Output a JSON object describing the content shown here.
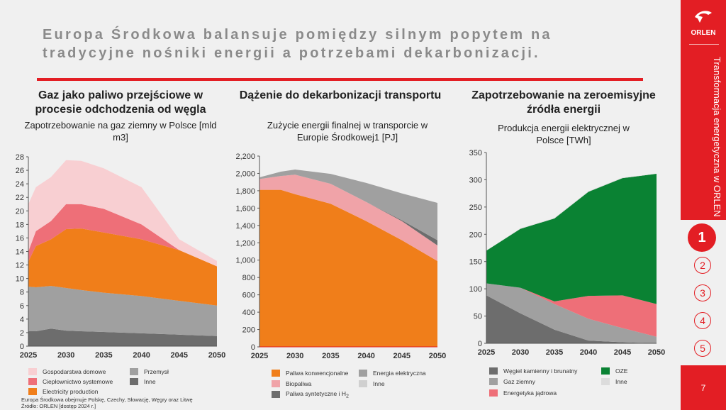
{
  "title": {
    "line1": "Europa Środkowa balansuje pomiędzy silnym popytem na",
    "line2": "tradycyjne nośniki energii a potrzebami dekarbonizacji."
  },
  "sidebar": {
    "logo": "ORLEN",
    "section": "Transformacja energetyczna w ORLEN",
    "steps": [
      "1",
      "2",
      "3",
      "4",
      "5"
    ],
    "active_step": "1",
    "page": "7"
  },
  "panels": [
    {
      "heading": "Gaz jako paliwo przejściowe w procesie odchodzenia od węgla",
      "subtitle": "Zapotrzebowanie na gaz ziemny w Polsce [mld m3]"
    },
    {
      "heading": "Dążenie do dekarbonizacji transportu",
      "subtitle": "Zużycie energii finalnej w transporcie w Europie Środkowej1 [PJ]"
    },
    {
      "heading": "Zapotrzebowanie na zeroemisyjne źródła energii",
      "subtitle": "Produkcja energii elektrycznej w Polsce [TWh]"
    }
  ],
  "footnote": {
    "line1": "Europa Środkowa obejmuje Polskę, Czechy, Słowację, Węgry oraz Litwę",
    "line2": "Źródło: ORLEN [dostęp 2024 r.]"
  },
  "chart_data": [
    {
      "type": "area",
      "stacked": true,
      "title": "Zapotrzebowanie na gaz ziemny w Polsce [mld m3]",
      "ylim": [
        0,
        28
      ],
      "yticks": [
        0,
        2,
        4,
        6,
        8,
        10,
        12,
        14,
        16,
        18,
        20,
        22,
        24,
        26,
        28
      ],
      "xticks": [
        2025,
        2030,
        2035,
        2040,
        2045,
        2050
      ],
      "x": [
        2025,
        2026,
        2028,
        2030,
        2032,
        2035,
        2040,
        2045,
        2050
      ],
      "series": [
        {
          "name": "Inne",
          "color": "#6d6d6d",
          "values": [
            2.2,
            2.2,
            2.6,
            2.3,
            2.2,
            2.1,
            1.9,
            1.7,
            1.5
          ]
        },
        {
          "name": "Przemysł",
          "color": "#a0a0a0",
          "values": [
            6.6,
            6.5,
            6.3,
            6.3,
            6.1,
            5.8,
            5.5,
            5.0,
            4.5
          ]
        },
        {
          "name": "Electricity production",
          "color": "#f07e1a",
          "values": [
            3.7,
            6.1,
            6.9,
            8.7,
            9.1,
            8.9,
            8.4,
            7.5,
            5.8
          ]
        },
        {
          "name": "Ciepłownictwo systemowe",
          "color": "#ee6f78",
          "values": [
            1.5,
            2.2,
            2.7,
            3.7,
            3.6,
            3.5,
            2.2,
            0,
            0
          ]
        },
        {
          "name": "Gospodarstwa domowe",
          "color": "#f8cfd2",
          "values": [
            7.0,
            6.5,
            6.5,
            6.5,
            6.4,
            6.0,
            5.5,
            1.6,
            0.8
          ]
        }
      ]
    },
    {
      "type": "area",
      "stacked": true,
      "title": "Zużycie energii finalnej w transporcie w Europie Środkowej [PJ]",
      "ylim": [
        0,
        2200
      ],
      "yticks": [
        "0",
        "200",
        "400",
        "600",
        "800",
        "1,000",
        "1,200",
        "1,400",
        "1,600",
        "1,800",
        "2,000",
        "2,200"
      ],
      "xticks": [
        2025,
        2030,
        2035,
        2040,
        2045,
        2050
      ],
      "x": [
        2025,
        2028,
        2030,
        2035,
        2040,
        2045,
        2050
      ],
      "series": [
        {
          "name": "Paliwa konwencjonalne",
          "color": "#f07e1a",
          "values": [
            1810,
            1810,
            1760,
            1650,
            1450,
            1230,
            990
          ]
        },
        {
          "name": "Biopaliwa",
          "color": "#f0a3a8",
          "values": [
            125,
            160,
            225,
            230,
            220,
            220,
            180
          ]
        },
        {
          "name": "Paliwa syntetyczne i H2",
          "color": "#6d6d6d",
          "values": [
            0,
            0,
            0,
            0,
            0,
            10,
            60
          ]
        },
        {
          "name": "Energia elektryczna",
          "color": "#a0a0a0",
          "values": [
            20,
            50,
            60,
            115,
            220,
            310,
            430
          ]
        },
        {
          "name": "Inne",
          "color": "#d0d0d0",
          "values": [
            0,
            0,
            0,
            0,
            0,
            0,
            0
          ]
        }
      ]
    },
    {
      "type": "area",
      "stacked": true,
      "title": "Produkcja energii elektrycznej w Polsce [TWh]",
      "ylim": [
        0,
        350
      ],
      "yticks": [
        0,
        50,
        100,
        150,
        200,
        250,
        300,
        350
      ],
      "xticks": [
        2025,
        2030,
        2035,
        2040,
        2045,
        2050
      ],
      "x": [
        2025,
        2030,
        2035,
        2040,
        2045,
        2050
      ],
      "series": [
        {
          "name": "Węgiel kamienny i brunatny",
          "color": "#6d6d6d",
          "values": [
            88,
            55,
            25,
            5,
            2,
            0
          ]
        },
        {
          "name": "Gaz ziemny",
          "color": "#a0a0a0",
          "values": [
            22,
            47,
            47,
            40,
            26,
            12
          ]
        },
        {
          "name": "Energetyka jądrowa",
          "color": "#ee6f78",
          "values": [
            0,
            0,
            5,
            42,
            60,
            60
          ]
        },
        {
          "name": "OZE",
          "color": "#0a8233",
          "values": [
            60,
            108,
            152,
            191,
            215,
            239
          ]
        },
        {
          "name": "Inne",
          "color": "#dcdcdc",
          "values": [
            0,
            1,
            1,
            1,
            1,
            0
          ]
        }
      ]
    }
  ]
}
